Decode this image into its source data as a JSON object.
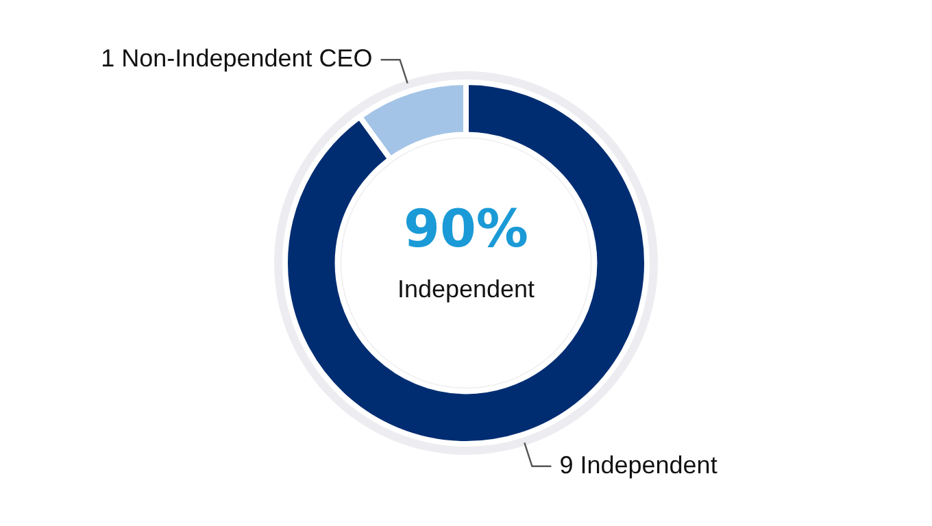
{
  "chart_data": {
    "type": "donut",
    "categories": [
      "9 Independent",
      "1 Non-Independent CEO"
    ],
    "values": [
      90,
      10
    ],
    "colors": [
      "#002d72",
      "#a3c4e6"
    ],
    "legend": false,
    "annotations": [
      "90%",
      "Independent"
    ]
  }
}
